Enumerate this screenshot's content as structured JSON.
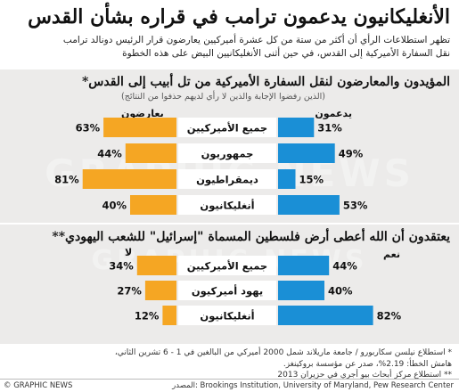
{
  "title": "الأنغليكانيون يدعمون ترامب في قراره بشأن القدس",
  "subtitle_lines": [
    "تظهر استطلاعات الرأي أن أكثر من ستة من كل عشرة أميركيين يعارضون قرار الرئيس دونالد ترامب",
    "نقل السفارة الأميركية إلى القدس، في حين أثنى الأنغليكانيين البيض على هذه الخطوة"
  ],
  "watermark": "GRAPHIC NEWS",
  "colors": {
    "for": "#1a8fd6",
    "against": "#f5a623",
    "panel": "#ecebea"
  },
  "chart_data": [
    {
      "type": "bar",
      "title": "المؤيدون والمعارضون لنقل السفارة الأميركية من تل أبيب إلى القدس*",
      "note": "(الذين رفضوا الإجابة والذين لا رأي لديهم حذفوا من النتائج)",
      "categories": [
        "جميع الأميركيين",
        "جمهوريون",
        "ديمقراطيون",
        "أنغليكانيون"
      ],
      "series": [
        {
          "name": "يدعمون",
          "values": [
            31,
            49,
            15,
            53
          ],
          "labels": [
            "31%",
            "49%",
            "15%",
            "53%"
          ]
        },
        {
          "name": "يعارضون",
          "values": [
            63,
            44,
            81,
            40
          ],
          "labels": [
            "63%",
            "44%",
            "81%",
            "40%"
          ]
        }
      ]
    },
    {
      "type": "bar",
      "title": "يعتقدون أن الله أعطى أرض فلسطين المسماة \"إسرائيل\" للشعب اليهودي**",
      "categories": [
        "جميع الأميركيين",
        "يهود أميركيون",
        "أنغليكانيون"
      ],
      "series": [
        {
          "name": "نعم",
          "values": [
            44,
            40,
            82
          ],
          "labels": [
            "44%",
            "40%",
            "82%"
          ]
        },
        {
          "name": "لا",
          "values": [
            34,
            27,
            12
          ],
          "labels": [
            "34%",
            "27%",
            "12%"
          ]
        }
      ]
    }
  ],
  "footnotes": [
    "* استطلاع نيلسن سكاربورو / جامعة ماريلاند شمل 2000 أميركي من البالغين في 1 - 6 تشرين الثاني،",
    "هامش الخطأ: 2.19%، صدر عن مؤسسة بروكينغز.",
    "** استطلاع مركز أبحاث بيو أجري في حزيران 2013"
  ],
  "credit": "© GRAPHIC NEWS",
  "source": "المصدر: Brookings Institution, University of Maryland, Pew Research Center"
}
